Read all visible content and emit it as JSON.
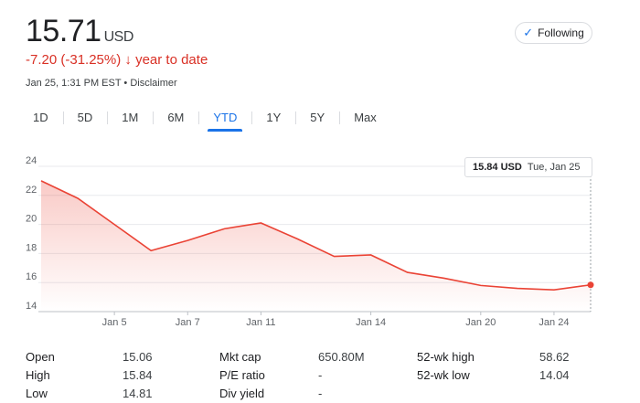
{
  "header": {
    "price": "15.71",
    "currency": "USD",
    "change": "-7.20 (-31.25%)",
    "change_arrow": "↓",
    "change_period": "year to date",
    "timestamp": "Jan 25, 1:31 PM EST • Disclaimer",
    "follow_label": "Following"
  },
  "tabs": [
    "1D",
    "5D",
    "1M",
    "6M",
    "YTD",
    "1Y",
    "5Y",
    "Max"
  ],
  "active_tab": "YTD",
  "tooltip": {
    "price": "15.84 USD",
    "date": "Tue, Jan 25"
  },
  "chart_data": {
    "type": "area",
    "x": [
      "Jan 3",
      "Jan 4",
      "Jan 5",
      "Jan 6",
      "Jan 7",
      "Jan 10",
      "Jan 11",
      "Jan 12",
      "Jan 13",
      "Jan 14",
      "Jan 18",
      "Jan 19",
      "Jan 20",
      "Jan 21",
      "Jan 24",
      "Jan 25"
    ],
    "values": [
      23.0,
      21.8,
      20.0,
      18.2,
      18.9,
      19.7,
      20.1,
      19.0,
      17.8,
      17.9,
      16.7,
      16.3,
      15.8,
      15.6,
      15.5,
      15.84
    ],
    "x_ticks": [
      "Jan 5",
      "Jan 7",
      "Jan 11",
      "Jan 14",
      "Jan 20",
      "Jan 24"
    ],
    "y_ticks": [
      14,
      16,
      18,
      20,
      22,
      24
    ],
    "ylim": [
      14,
      24
    ],
    "line_color": "#ea4335",
    "grid": true
  },
  "stats": [
    [
      {
        "label": "Open",
        "value": "15.06"
      },
      {
        "label": "Mkt cap",
        "value": "650.80M"
      },
      {
        "label": "52-wk high",
        "value": "58.62"
      }
    ],
    [
      {
        "label": "High",
        "value": "15.84"
      },
      {
        "label": "P/E ratio",
        "value": "-"
      },
      {
        "label": "52-wk low",
        "value": "14.04"
      }
    ],
    [
      {
        "label": "Low",
        "value": "14.81"
      },
      {
        "label": "Div yield",
        "value": "-"
      },
      {
        "label": "",
        "value": ""
      }
    ]
  ],
  "colors": {
    "accent": "#1a73e8",
    "negative": "#d93025"
  }
}
